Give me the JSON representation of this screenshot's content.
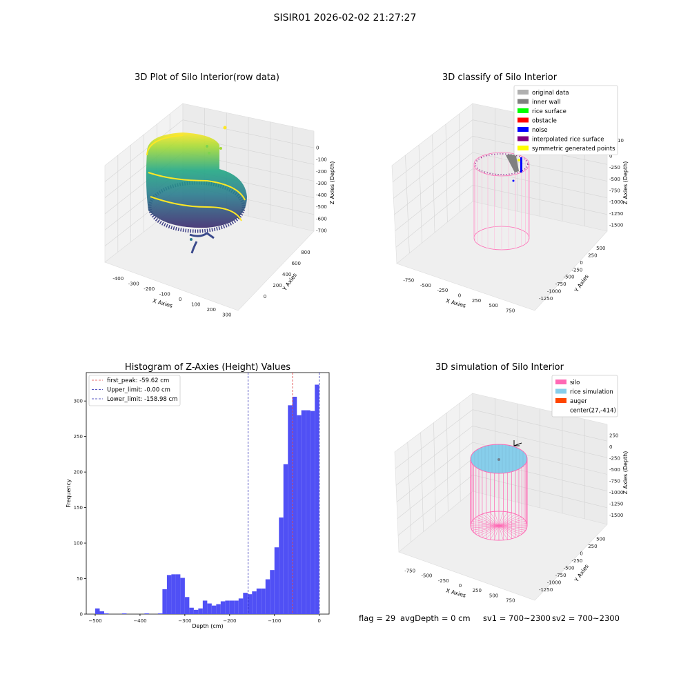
{
  "suptitle": "SISIR01 2026-02-02 21:27:27",
  "footer": {
    "flag": "flag = 29",
    "avg_depth": "avgDepth = 0 cm",
    "sv1": "sv1 = 700~2300",
    "sv2": "sv2 = 700~2300"
  },
  "colors": {
    "histogram_bar": "#5050f5",
    "first_peak_line": "#e04040",
    "limit_line": "#2020b0",
    "silo": "#ff69b4",
    "rice": "#87ceeb",
    "auger": "#ff4500"
  },
  "chart_data": [
    {
      "type": "scatter",
      "title": "3D Plot of Silo Interior(row data)",
      "xlabel": "X Axies",
      "ylabel": "Y Axies",
      "zlabel": "Z Axies (Depth)",
      "x_ticks": [
        "-400",
        "-300",
        "-200",
        "-100",
        "0",
        "100",
        "200",
        "300"
      ],
      "y_ticks": [
        "0",
        "200",
        "400",
        "600",
        "800"
      ],
      "z_ticks": [
        "0",
        "-100",
        "-200",
        "-300",
        "-400",
        "-500",
        "-600",
        "-700"
      ],
      "colormap": "viridis"
    },
    {
      "type": "scatter",
      "title": "3D classify of Silo Interior",
      "xlabel": "X Axies",
      "ylabel": "Y Axies",
      "zlabel": "Z Axies (Depth)",
      "x_ticks": [
        "-750",
        "-500",
        "-250",
        "0",
        "250",
        "500",
        "750"
      ],
      "y_ticks": [
        "500",
        "250",
        "0",
        "-250",
        "-500",
        "-750",
        "-1000",
        "-1250"
      ],
      "z_ticks": [
        "0",
        "-250",
        "-500",
        "-750",
        "-1000",
        "-1250",
        "-1500"
      ],
      "z_top_label": "10",
      "legend_position": "top-right",
      "legend": [
        {
          "label": "original data",
          "color": "#b0b0b0"
        },
        {
          "label": "inner wall",
          "color": "#808080"
        },
        {
          "label": "rice surface",
          "color": "#00ff00"
        },
        {
          "label": "obstacle",
          "color": "#ff0000"
        },
        {
          "label": "noise",
          "color": "#0000ff"
        },
        {
          "label": "interpolated rice surface",
          "color": "#800080"
        },
        {
          "label": "symmetric generated points",
          "color": "#ffff00"
        }
      ]
    },
    {
      "type": "bar",
      "title": "Histogram of Z-Axies (Height) Values",
      "xlabel": "Depth (cm)",
      "ylabel": "Frequency",
      "xlim": [
        -520,
        22
      ],
      "ylim": [
        0,
        340
      ],
      "x_ticks": [
        -500,
        -400,
        -300,
        -200,
        -100,
        0
      ],
      "y_ticks": [
        0,
        50,
        100,
        150,
        200,
        250,
        300
      ],
      "bin_width": 10,
      "bins": [
        {
          "start": -510,
          "count": 0
        },
        {
          "start": -500,
          "count": 8
        },
        {
          "start": -490,
          "count": 4
        },
        {
          "start": -480,
          "count": 1
        },
        {
          "start": -470,
          "count": 0
        },
        {
          "start": -460,
          "count": 0
        },
        {
          "start": -450,
          "count": 0
        },
        {
          "start": -440,
          "count": 1
        },
        {
          "start": -430,
          "count": 0
        },
        {
          "start": -420,
          "count": 0
        },
        {
          "start": -410,
          "count": 0
        },
        {
          "start": -400,
          "count": 0
        },
        {
          "start": -390,
          "count": 1
        },
        {
          "start": -380,
          "count": 0
        },
        {
          "start": -370,
          "count": 0
        },
        {
          "start": -360,
          "count": 1
        },
        {
          "start": -350,
          "count": 35
        },
        {
          "start": -340,
          "count": 55
        },
        {
          "start": -330,
          "count": 56
        },
        {
          "start": -320,
          "count": 56
        },
        {
          "start": -310,
          "count": 51
        },
        {
          "start": -300,
          "count": 24
        },
        {
          "start": -290,
          "count": 9
        },
        {
          "start": -280,
          "count": 6
        },
        {
          "start": -270,
          "count": 8
        },
        {
          "start": -260,
          "count": 19
        },
        {
          "start": -250,
          "count": 15
        },
        {
          "start": -240,
          "count": 12
        },
        {
          "start": -230,
          "count": 14
        },
        {
          "start": -220,
          "count": 18
        },
        {
          "start": -210,
          "count": 19
        },
        {
          "start": -200,
          "count": 19
        },
        {
          "start": -190,
          "count": 19
        },
        {
          "start": -180,
          "count": 22
        },
        {
          "start": -170,
          "count": 30
        },
        {
          "start": -160,
          "count": 28
        },
        {
          "start": -150,
          "count": 32
        },
        {
          "start": -140,
          "count": 36
        },
        {
          "start": -130,
          "count": 36
        },
        {
          "start": -120,
          "count": 49
        },
        {
          "start": -110,
          "count": 62
        },
        {
          "start": -100,
          "count": 94
        },
        {
          "start": -90,
          "count": 136
        },
        {
          "start": -80,
          "count": 211
        },
        {
          "start": -70,
          "count": 294
        },
        {
          "start": -60,
          "count": 306
        },
        {
          "start": -50,
          "count": 280
        },
        {
          "start": -40,
          "count": 287
        },
        {
          "start": -30,
          "count": 287
        },
        {
          "start": -20,
          "count": 286
        },
        {
          "start": -10,
          "count": 323
        }
      ],
      "vlines": [
        {
          "name": "first_peak",
          "label": "first_peak: -59.62 cm",
          "x": -59.62,
          "color": "#e04040"
        },
        {
          "name": "upper_limit",
          "label": "Upper_limit: -0.00 cm",
          "x": 0.0,
          "color": "#2020b0"
        },
        {
          "name": "lower_limit",
          "label": "Lower_limit: -158.98 cm",
          "x": -158.98,
          "color": "#2020b0"
        }
      ],
      "legend_position": "top-left"
    },
    {
      "type": "surface",
      "title": "3D simulation of Silo Interior",
      "xlabel": "X Axies",
      "ylabel": "Y Axies",
      "zlabel": "Z Axies (Depth)",
      "x_ticks": [
        "-750",
        "-500",
        "-250",
        "0",
        "250",
        "500",
        "750"
      ],
      "y_ticks": [
        "500",
        "250",
        "0",
        "-250",
        "-500",
        "-750",
        "-1000",
        "-1250"
      ],
      "z_ticks": [
        "250",
        "0",
        "-250",
        "-500",
        "-750",
        "-1000",
        "-1250",
        "-1500"
      ],
      "legend_position": "top-right",
      "legend": [
        {
          "label": "silo",
          "color": "#ff69b4",
          "marker": "patch"
        },
        {
          "label": "rice simulation",
          "color": "#87ceeb",
          "marker": "patch"
        },
        {
          "label": "auger",
          "color": "#ff4500",
          "marker": "patch"
        },
        {
          "label": "center(27,-414)",
          "color": "",
          "marker": "none"
        }
      ]
    }
  ]
}
